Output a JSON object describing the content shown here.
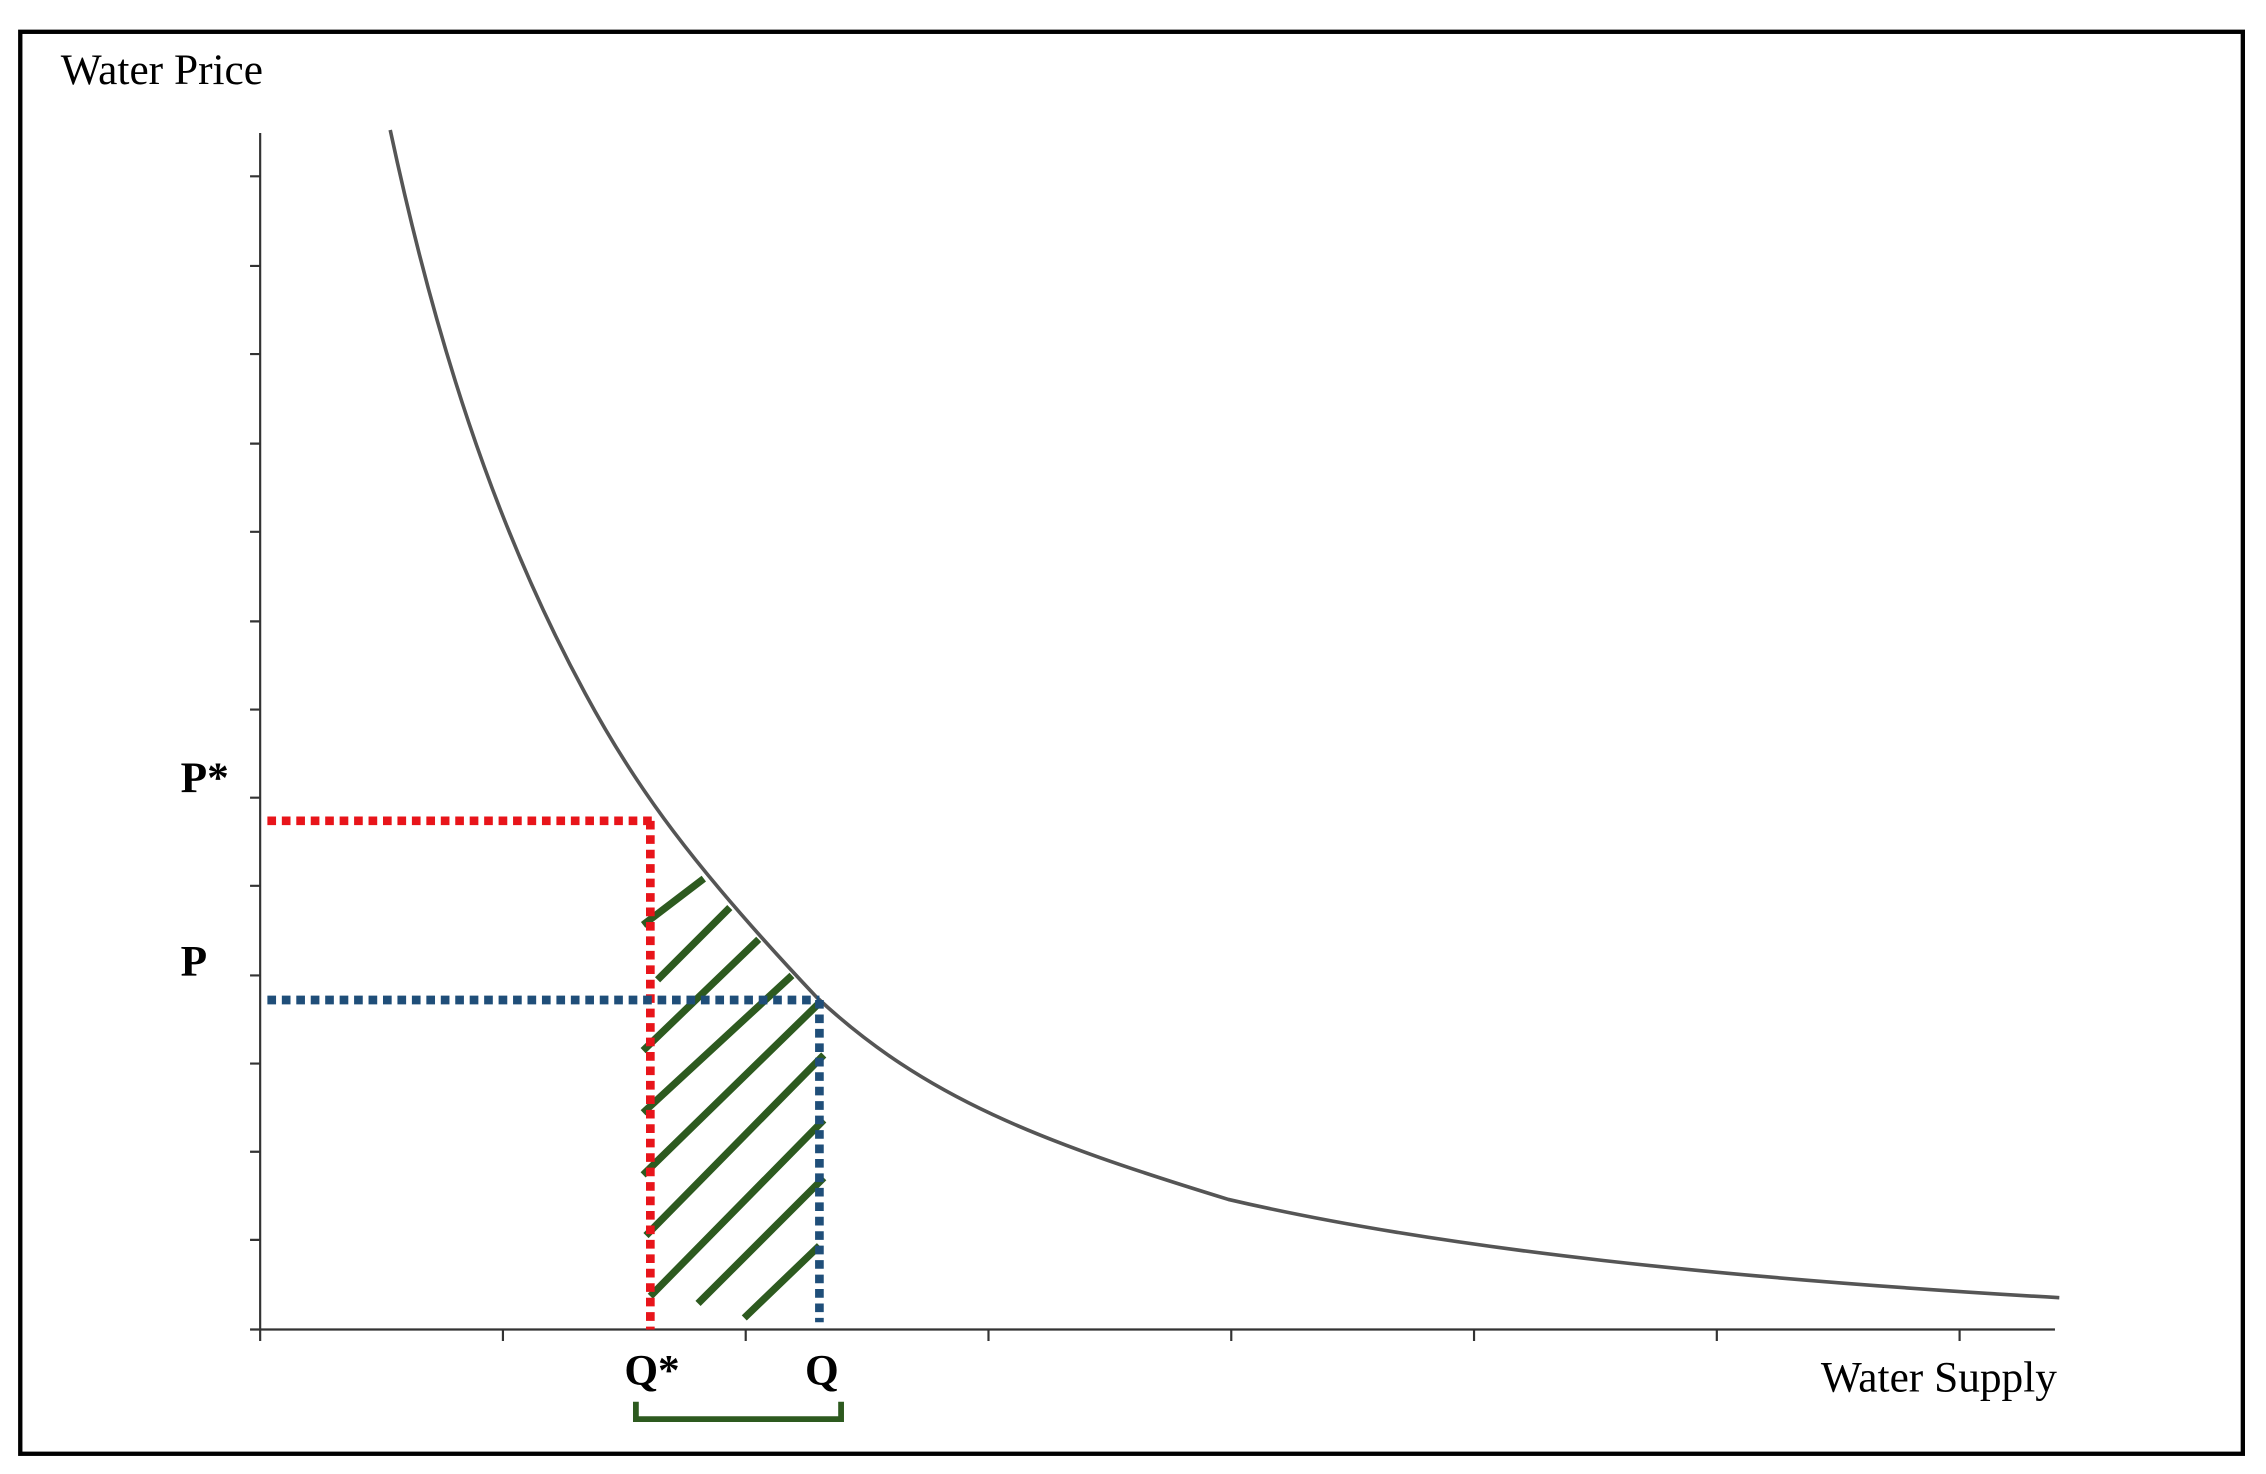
{
  "diagram": {
    "y_axis_label": "Water Price",
    "x_axis_label": "Water Supply",
    "price_labels": [
      "P*",
      "P"
    ],
    "quantity_labels": [
      "Q*",
      "Q"
    ]
  }
}
